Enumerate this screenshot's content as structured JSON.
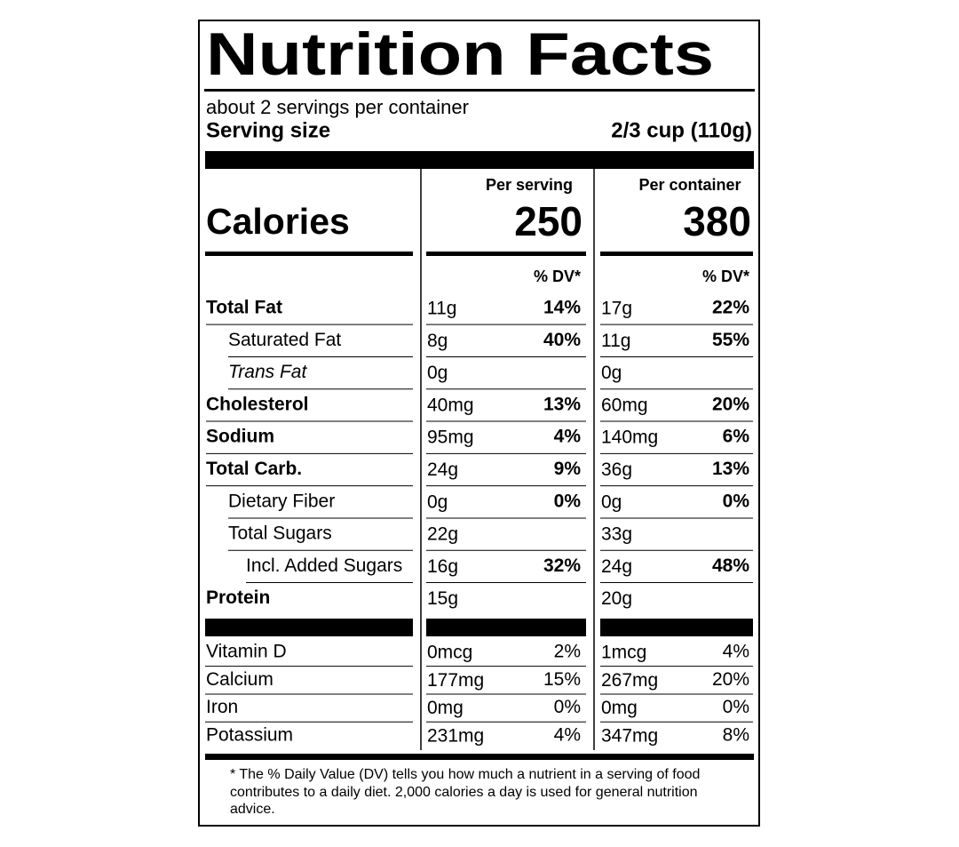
{
  "title": "Nutrition Facts",
  "servings": "about 2 servings per container",
  "serving_size_label": "Serving size",
  "serving_size": "2/3 cup (110g)",
  "calories_label": "Calories",
  "dv_heading": "% DV*",
  "columns": [
    {
      "heading": "Per serving",
      "calories": 250
    },
    {
      "heading": "Per container",
      "calories": 380
    }
  ],
  "nutrients": [
    {
      "name": "Total Fat",
      "bold": true,
      "indent": 0,
      "amounts": [
        "11g",
        "17g"
      ],
      "dv": [
        "14%",
        "22%"
      ]
    },
    {
      "name": "Saturated Fat",
      "indent": 1,
      "amounts": [
        "8g",
        "11g"
      ],
      "dv": [
        "40%",
        "55%"
      ]
    },
    {
      "name": "Trans Fat",
      "italic": true,
      "indent": 1,
      "amounts": [
        "0g",
        "0g"
      ],
      "dv": [
        null,
        null
      ]
    },
    {
      "name": "Cholesterol",
      "bold": true,
      "indent": 0,
      "amounts": [
        "40mg",
        "60mg"
      ],
      "dv": [
        "13%",
        "20%"
      ]
    },
    {
      "name": "Sodium",
      "bold": true,
      "indent": 0,
      "amounts": [
        "95mg",
        "140mg"
      ],
      "dv": [
        "4%",
        "6%"
      ]
    },
    {
      "name": "Total Carb.",
      "bold": true,
      "indent": 0,
      "amounts": [
        "24g",
        "36g"
      ],
      "dv": [
        "9%",
        "13%"
      ]
    },
    {
      "name": "Dietary Fiber",
      "indent": 1,
      "amounts": [
        "0g",
        "0g"
      ],
      "dv": [
        "0%",
        "0%"
      ]
    },
    {
      "name": "Total Sugars",
      "indent": 1,
      "amounts": [
        "22g",
        "33g"
      ],
      "dv": [
        null,
        null
      ]
    },
    {
      "name": "Incl. Added Sugars",
      "indent": 2,
      "amounts": [
        "16g",
        "24g"
      ],
      "dv": [
        "32%",
        "48%"
      ]
    },
    {
      "name": "Protein",
      "bold": true,
      "indent": 0,
      "amounts": [
        "15g",
        "20g"
      ],
      "dv": [
        null,
        null
      ]
    }
  ],
  "vitamins": [
    {
      "name": "Vitamin D",
      "amounts": [
        "0mcg",
        "1mcg"
      ],
      "dv": [
        "2%",
        "4%"
      ]
    },
    {
      "name": "Calcium",
      "amounts": [
        "177mg",
        "267mg"
      ],
      "dv": [
        "15%",
        "20%"
      ]
    },
    {
      "name": "Iron",
      "amounts": [
        "0mg",
        "0mg"
      ],
      "dv": [
        "0%",
        "0%"
      ]
    },
    {
      "name": "Potassium",
      "amounts": [
        "231mg",
        "347mg"
      ],
      "dv": [
        "4%",
        "8%"
      ]
    }
  ],
  "footnote": "* The % Daily Value (DV) tells you how much a nutrient in a serving of food contributes to a daily diet. 2,000 calories a day is used for general nutrition advice."
}
